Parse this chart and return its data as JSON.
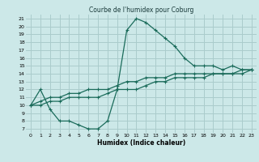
{
  "title": "Courbe de l'humidex pour Coburg",
  "xlabel": "Humidex (Indice chaleur)",
  "bg_color": "#cce8e8",
  "grid_color": "#aacccc",
  "line_color": "#1a6b5a",
  "xlim": [
    -0.5,
    23.5
  ],
  "ylim": [
    6.5,
    21.5
  ],
  "xticks": [
    0,
    1,
    2,
    3,
    4,
    5,
    6,
    7,
    8,
    9,
    10,
    11,
    12,
    13,
    14,
    15,
    16,
    17,
    18,
    19,
    20,
    21,
    22,
    23
  ],
  "yticks": [
    7,
    8,
    9,
    10,
    11,
    12,
    13,
    14,
    15,
    16,
    17,
    18,
    19,
    20,
    21
  ],
  "curve1_x": [
    0,
    1,
    2,
    3,
    4,
    5,
    6,
    7,
    8,
    9,
    10,
    11,
    12,
    13,
    14,
    15,
    16,
    17,
    18,
    19,
    20,
    21,
    22,
    23
  ],
  "curve1_y": [
    10,
    12,
    9.5,
    8,
    8,
    7.5,
    7,
    7,
    8,
    12,
    19.5,
    21,
    20.5,
    19.5,
    18.5,
    17.5,
    16,
    15,
    15,
    15,
    14.5,
    15,
    14.5,
    14.5
  ],
  "curve2_x": [
    0,
    1,
    2,
    3,
    4,
    5,
    6,
    7,
    8,
    9,
    10,
    11,
    12,
    13,
    14,
    15,
    16,
    17,
    18,
    19,
    20,
    21,
    22,
    23
  ],
  "curve2_y": [
    10,
    10.5,
    11,
    11,
    11.5,
    11.5,
    12,
    12,
    12,
    12.5,
    13,
    13,
    13.5,
    13.5,
    13.5,
    14,
    14,
    14,
    14,
    14,
    14,
    14,
    14.5,
    14.5
  ],
  "curve3_x": [
    0,
    1,
    2,
    3,
    4,
    5,
    6,
    7,
    8,
    9,
    10,
    11,
    12,
    13,
    14,
    15,
    16,
    17,
    18,
    19,
    20,
    21,
    22,
    23
  ],
  "curve3_y": [
    10,
    10,
    10.5,
    10.5,
    11,
    11,
    11,
    11,
    11.5,
    12,
    12,
    12,
    12.5,
    13,
    13,
    13.5,
    13.5,
    13.5,
    13.5,
    14,
    14,
    14,
    14,
    14.5
  ]
}
